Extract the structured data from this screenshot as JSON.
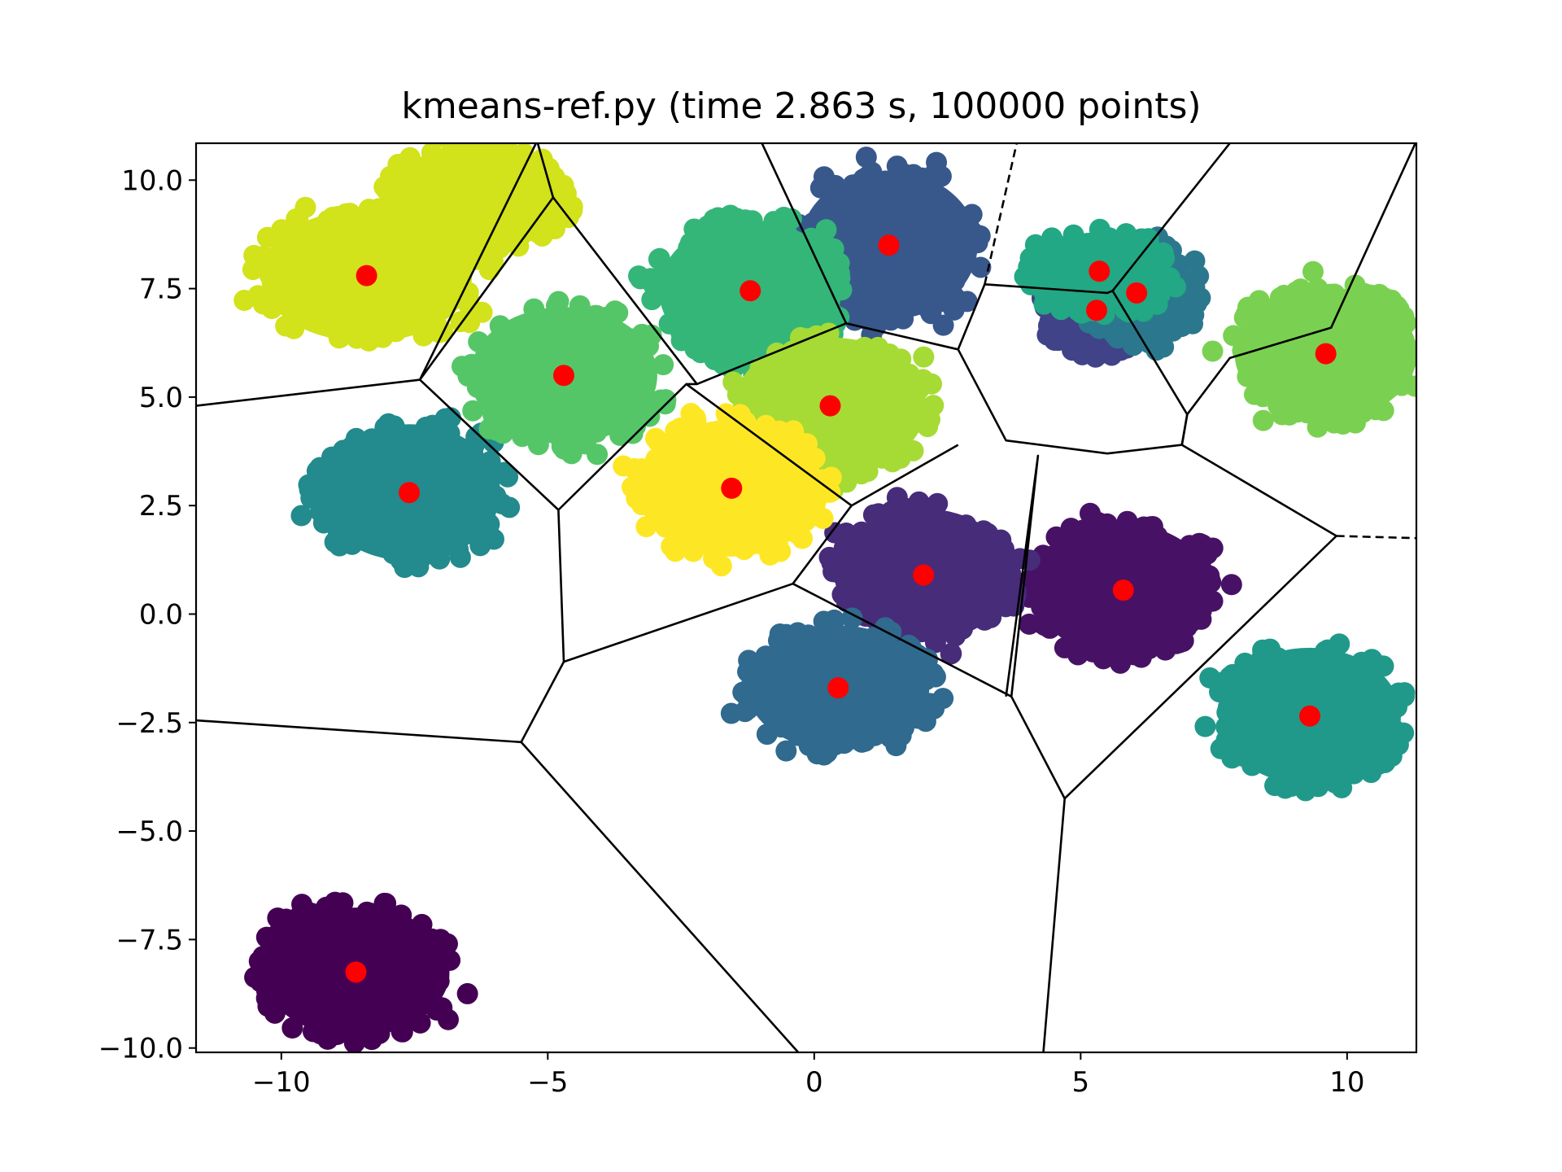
{
  "chart_data": {
    "type": "scatter",
    "title": "kmeans-ref.py (time 2.863 s, 100000 points)",
    "xlabel": "",
    "ylabel": "",
    "xlim": [
      -11.6,
      11.3
    ],
    "ylim": [
      -10.1,
      10.85
    ],
    "grid": false,
    "x_ticks": [
      {
        "value": -10,
        "label": "−10"
      },
      {
        "value": -5,
        "label": "−5"
      },
      {
        "value": 0,
        "label": "0"
      },
      {
        "value": 5,
        "label": "5"
      },
      {
        "value": 10,
        "label": "10"
      }
    ],
    "y_ticks": [
      {
        "value": 10,
        "label": "10.0"
      },
      {
        "value": 7.5,
        "label": "7.5"
      },
      {
        "value": 5,
        "label": "5.0"
      },
      {
        "value": 2.5,
        "label": "2.5"
      },
      {
        "value": 0,
        "label": "0.0"
      },
      {
        "value": -2.5,
        "label": "−2.5"
      },
      {
        "value": -5,
        "label": "−5.0"
      },
      {
        "value": -7.5,
        "label": "−7.5"
      },
      {
        "value": -10,
        "label": "−10.0"
      }
    ],
    "clusters": [
      {
        "cx": -8.6,
        "cy": -8.25,
        "rx": 1.95,
        "ry": 1.65,
        "color": "#440154"
      },
      {
        "cx": 5.8,
        "cy": 0.55,
        "rx": 1.85,
        "ry": 1.7,
        "color": "#471265"
      },
      {
        "cx": 2.05,
        "cy": 0.9,
        "rx": 1.85,
        "ry": 1.7,
        "color": "#472c7a"
      },
      {
        "cx": 5.3,
        "cy": 7.0,
        "rx": 1.15,
        "ry": 1.1,
        "color": "#404387"
      },
      {
        "cx": 1.4,
        "cy": 8.5,
        "rx": 1.85,
        "ry": 1.9,
        "color": "#38588c"
      },
      {
        "cx": 0.45,
        "cy": -1.7,
        "rx": 1.9,
        "ry": 1.6,
        "color": "#306a8e"
      },
      {
        "cx": 6.05,
        "cy": 7.4,
        "rx": 1.2,
        "ry": 1.25,
        "color": "#2b788e"
      },
      {
        "cx": -7.6,
        "cy": 2.8,
        "rx": 1.9,
        "ry": 1.75,
        "color": "#238a8d"
      },
      {
        "cx": 9.3,
        "cy": -2.35,
        "rx": 1.9,
        "ry": 1.75,
        "color": "#20998b"
      },
      {
        "cx": 5.35,
        "cy": 7.9,
        "rx": 1.4,
        "ry": 1.0,
        "color": "#22a884"
      },
      {
        "cx": -1.2,
        "cy": 7.45,
        "rx": 1.9,
        "ry": 1.8,
        "color": "#34b679"
      },
      {
        "cx": -4.7,
        "cy": 5.5,
        "rx": 1.95,
        "ry": 1.75,
        "color": "#55c667"
      },
      {
        "cx": 9.6,
        "cy": 6.0,
        "rx": 1.9,
        "ry": 1.7,
        "color": "#7ad151"
      },
      {
        "cx": 0.3,
        "cy": 4.8,
        "rx": 2.0,
        "ry": 1.75,
        "color": "#a6db35"
      },
      {
        "cx": -8.4,
        "cy": 7.8,
        "rx": 2.2,
        "ry": 1.7,
        "color": "#d2e21b"
      },
      {
        "cx": -6.3,
        "cy": 9.6,
        "rx": 1.8,
        "ry": 1.4,
        "color": "#d2e21b"
      },
      {
        "cx": -1.55,
        "cy": 2.9,
        "rx": 1.9,
        "ry": 1.75,
        "color": "#fde725"
      }
    ],
    "centroids": {
      "color": "#ff0000",
      "x": [
        -8.6,
        5.8,
        2.05,
        5.3,
        1.4,
        0.45,
        6.05,
        -7.6,
        9.3,
        5.35,
        -1.2,
        -4.7,
        9.6,
        0.3,
        -8.4,
        -1.55
      ],
      "y": [
        -8.25,
        0.55,
        0.9,
        7.0,
        8.5,
        -1.7,
        7.4,
        2.8,
        -2.35,
        7.9,
        7.45,
        5.5,
        6.0,
        4.8,
        7.8,
        2.9
      ]
    },
    "voronoi_edges": [
      {
        "x": [
          -11.6,
          -7.4,
          -4.9,
          -5.2,
          -7.4
        ],
        "y": [
          4.8,
          5.4,
          9.6,
          10.9,
          5.4
        ],
        "style": "solid"
      },
      {
        "x": [
          -7.4,
          -4.8,
          -4.7,
          -5.5,
          -11.6
        ],
        "y": [
          5.4,
          2.4,
          -1.1,
          -2.95,
          -2.45
        ],
        "style": "solid"
      },
      {
        "x": [
          -4.9,
          -2.2,
          -2.4,
          -4.8
        ],
        "y": [
          9.6,
          5.3,
          5.3,
          2.4
        ],
        "style": "solid"
      },
      {
        "x": [
          -2.2,
          0.6,
          2.7,
          3.6,
          5.5,
          6.9,
          7.0,
          7.8,
          9.7,
          11.3
        ],
        "y": [
          5.3,
          6.7,
          6.1,
          4.0,
          3.7,
          3.9,
          4.6,
          5.9,
          6.6,
          10.9
        ],
        "style": "solid"
      },
      {
        "x": [
          -1.0,
          0.6
        ],
        "y": [
          10.9,
          6.7
        ],
        "style": "solid"
      },
      {
        "x": [
          -2.4,
          0.7,
          2.7
        ],
        "y": [
          5.3,
          2.5,
          3.9
        ],
        "style": "solid"
      },
      {
        "x": [
          0.7,
          -0.4,
          -4.7
        ],
        "y": [
          2.5,
          0.7,
          -1.1
        ],
        "style": "solid"
      },
      {
        "x": [
          -0.4,
          3.7,
          4.2,
          3.6
        ],
        "y": [
          0.7,
          -1.9,
          3.65,
          -1.9
        ],
        "style": "solid"
      },
      {
        "x": [
          3.7,
          4.7,
          9.8,
          6.9,
          7.0
        ],
        "y": [
          -1.9,
          -4.25,
          1.8,
          3.9,
          4.6
        ],
        "style": "solid"
      },
      {
        "x": [
          4.7,
          4.3
        ],
        "y": [
          -4.25,
          -10.1
        ],
        "style": "solid"
      },
      {
        "x": [
          -5.5,
          -0.3
        ],
        "y": [
          -2.95,
          -10.1
        ],
        "style": "solid"
      },
      {
        "x": [
          2.7,
          3.2,
          5.5,
          5.6,
          7.8,
          5.6,
          7.0
        ],
        "y": [
          6.1,
          7.6,
          7.4,
          7.45,
          10.85,
          7.45,
          4.6
        ],
        "style": "solid"
      },
      {
        "x": [
          3.2,
          3.8
        ],
        "y": [
          7.6,
          10.85
        ],
        "style": "dashed"
      },
      {
        "x": [
          9.8,
          11.3
        ],
        "y": [
          1.8,
          1.75
        ],
        "style": "dashed"
      }
    ]
  }
}
